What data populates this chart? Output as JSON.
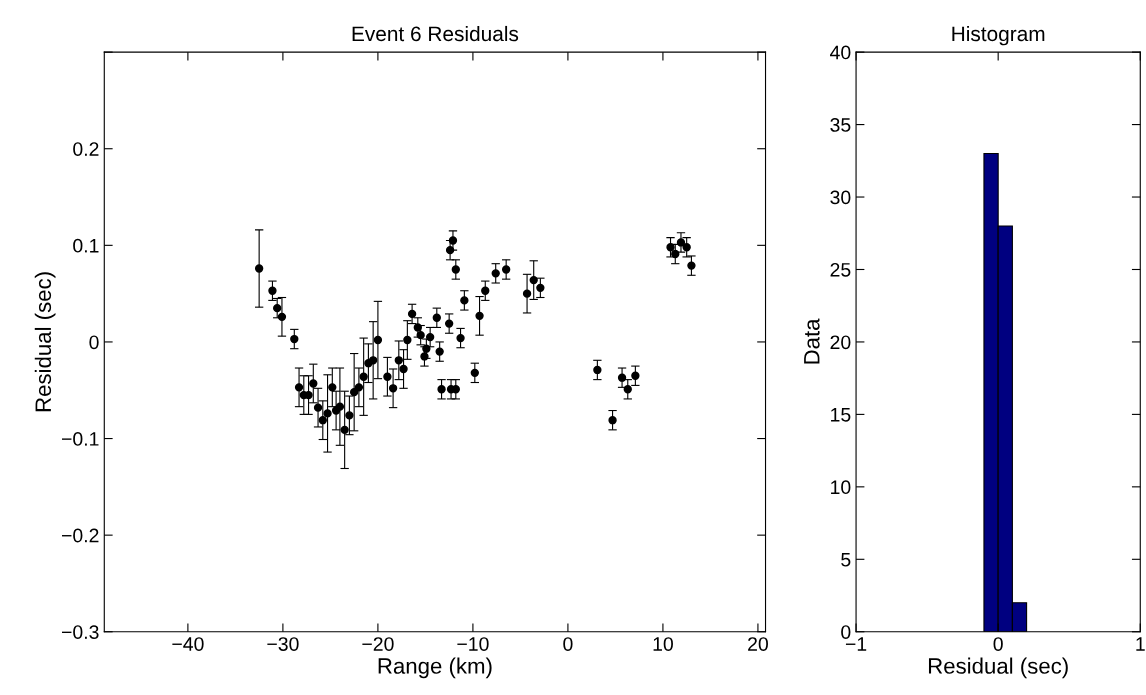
{
  "chart_data": [
    {
      "type": "scatter",
      "title": "Event 6 Residuals",
      "xlabel": "Range (km)",
      "ylabel": "Residual (sec)",
      "x": [
        -32.5,
        -31.1,
        -30.6,
        -30.1,
        -28.8,
        -28.3,
        -27.8,
        -27.3,
        -26.8,
        -26.3,
        -25.8,
        -25.3,
        -24.8,
        -24.4,
        -24.0,
        -23.5,
        -23.0,
        -22.5,
        -22.0,
        -21.5,
        -21.0,
        -20.5,
        -20.0,
        -19.0,
        -18.4,
        -17.8,
        -17.3,
        -16.9,
        -16.4,
        -15.8,
        -15.5,
        -15.1,
        -14.9,
        -14.5,
        -13.8,
        -13.5,
        -13.3,
        -12.5,
        -12.4,
        -12.3,
        -12.1,
        -11.8,
        -11.8,
        -11.3,
        -10.9,
        -9.8,
        -9.3,
        -8.7,
        -7.6,
        -6.5,
        -4.3,
        -3.6,
        -2.9,
        3.1,
        4.7,
        5.7,
        6.3,
        7.1,
        10.8,
        11.3,
        11.9,
        12.5,
        13.0
      ],
      "series": [
        {
          "color": "#000000",
          "values": [
            0.076,
            0.053,
            0.035,
            0.026,
            0.003,
            -0.047,
            -0.055,
            -0.055,
            -0.043,
            -0.068,
            -0.081,
            -0.074,
            -0.047,
            -0.071,
            -0.067,
            -0.091,
            -0.076,
            -0.052,
            -0.047,
            -0.036,
            -0.022,
            -0.019,
            0.002,
            -0.036,
            -0.048,
            -0.019,
            -0.028,
            0.002,
            0.029,
            0.015,
            0.007,
            -0.015,
            -0.007,
            0.005,
            0.025,
            -0.01,
            -0.049,
            0.019,
            0.095,
            -0.049,
            0.105,
            -0.049,
            0.075,
            0.004,
            0.043,
            -0.032,
            0.027,
            0.053,
            0.071,
            0.075,
            0.05,
            0.064,
            0.056,
            -0.029,
            -0.081,
            -0.037,
            -0.049,
            -0.035,
            0.098,
            0.091,
            0.103,
            0.098,
            0.079
          ],
          "errors": [
            0.04,
            0.01,
            0.01,
            0.02,
            0.01,
            0.02,
            0.02,
            0.02,
            0.02,
            0.02,
            0.02,
            0.04,
            0.02,
            0.02,
            0.04,
            0.04,
            0.02,
            0.04,
            0.02,
            0.04,
            0.02,
            0.04,
            0.04,
            0.02,
            0.02,
            0.02,
            0.02,
            0.02,
            0.01,
            0.01,
            0.01,
            0.01,
            0.01,
            0.01,
            0.01,
            0.01,
            0.01,
            0.01,
            0.01,
            0.01,
            0.01,
            0.01,
            0.01,
            0.01,
            0.01,
            0.01,
            0.02,
            0.01,
            0.01,
            0.01,
            0.02,
            0.02,
            0.01,
            0.01,
            0.01,
            0.01,
            0.01,
            0.01,
            0.01,
            0.01,
            0.01,
            0.01,
            0.01
          ]
        }
      ],
      "marker": "circle",
      "grid": false,
      "xlim": [
        -48.8,
        20.8
      ],
      "xticks": [
        -40,
        -30,
        -20,
        -10,
        0,
        10,
        20
      ],
      "ylim": [
        -0.3,
        0.3
      ],
      "yticks": [
        -0.3,
        -0.2,
        -0.1,
        0,
        0.1,
        0.2,
        {
          "value": 0.3,
          "label": null
        }
      ]
    },
    {
      "type": "histogram",
      "title": "Histogram",
      "xlabel": "Residual (sec)",
      "ylabel": "Data",
      "bins": [
        -0.1,
        0,
        0.1,
        0.2
      ],
      "values": [
        33,
        28,
        2
      ],
      "color": "#000080",
      "grid": false,
      "xlim": [
        -1,
        1
      ],
      "xticks": [
        -1,
        0,
        1
      ],
      "ylim": [
        0,
        40
      ],
      "yticks": [
        0,
        5,
        10,
        15,
        20,
        25,
        30,
        35,
        40
      ]
    }
  ]
}
